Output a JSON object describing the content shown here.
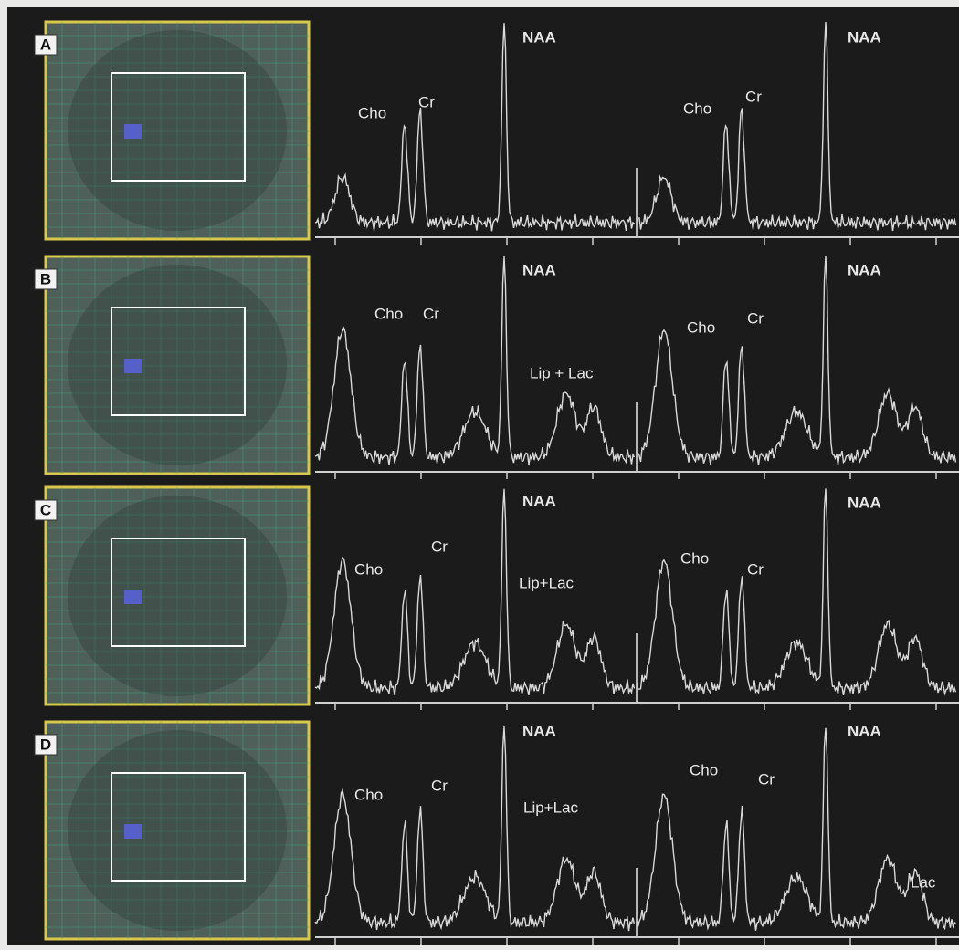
{
  "panels": [
    {
      "label": "A",
      "spectra": [
        {
          "naa": "NAA",
          "cho": "Cho",
          "cr": "Cr"
        },
        {
          "naa": "NAA",
          "cho": "Cho",
          "cr": "Cr"
        }
      ]
    },
    {
      "label": "B",
      "spectra": [
        {
          "naa": "NAA",
          "cho": "Cho",
          "cr": "Cr",
          "lip_lac": "Lip + Lac"
        },
        {
          "naa": "NAA",
          "cho": "Cho",
          "cr": "Cr"
        }
      ]
    },
    {
      "label": "C",
      "spectra": [
        {
          "naa": "NAA",
          "cho": "Cho",
          "cr": "Cr",
          "lip_lac": "Lip+Lac"
        },
        {
          "naa": "NAA",
          "cho": "Cho",
          "cr": "Cr"
        }
      ]
    },
    {
      "label": "D",
      "spectra": [
        {
          "naa": "NAA",
          "cho": "Cho",
          "cr": "Cr",
          "lip_lac": "Lip+Lac"
        },
        {
          "naa": "NAA",
          "cho": "Cho",
          "cr": "Cr",
          "lac": "Lac"
        }
      ]
    }
  ]
}
